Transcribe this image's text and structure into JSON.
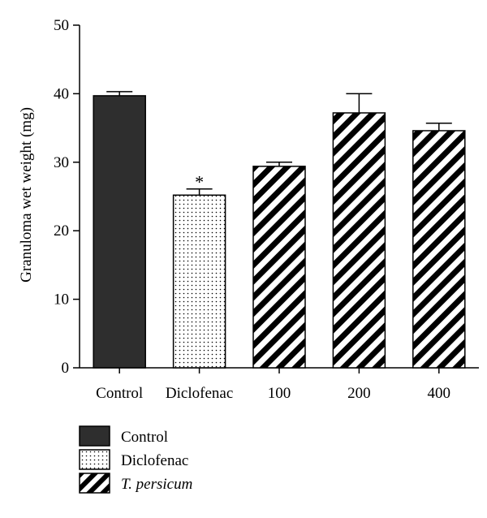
{
  "chart_data": {
    "type": "bar",
    "ylabel": "Granuloma wet weight (mg)",
    "xlabel": "",
    "ylim": [
      0,
      50
    ],
    "yticks": [
      0,
      10,
      20,
      30,
      40,
      50
    ],
    "categories": [
      "Control",
      "Diclofenac",
      "100",
      "200",
      "400"
    ],
    "values": [
      39.7,
      25.2,
      29.4,
      37.2,
      34.6
    ],
    "errors": [
      0.6,
      0.9,
      0.6,
      2.8,
      1.1
    ],
    "patterns": [
      "solid",
      "dots",
      "hatch",
      "hatch",
      "hatch"
    ],
    "annotations": [
      {
        "category": "Diclofenac",
        "text": "*"
      }
    ],
    "grid": false,
    "legend": {
      "position": "bottom-left",
      "entries": [
        {
          "label": "Control",
          "pattern": "solid"
        },
        {
          "label": "Diclofenac",
          "pattern": "dots"
        },
        {
          "label": "T. persicum",
          "pattern": "hatch",
          "italic": true
        }
      ]
    },
    "colors": {
      "bar_fill": "#2e2e2e",
      "outline": "#000000",
      "background": "#ffffff"
    }
  }
}
